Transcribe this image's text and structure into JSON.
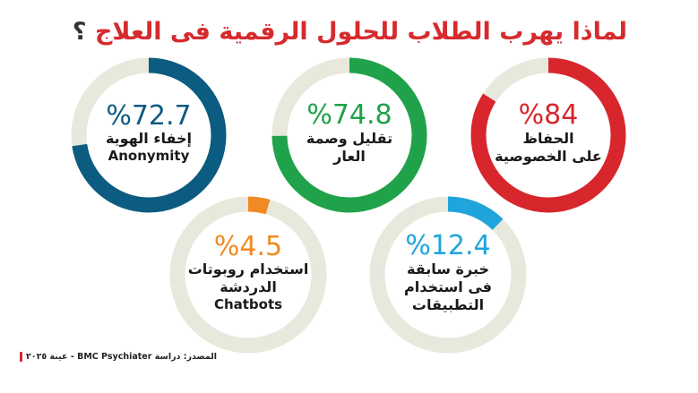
{
  "title": "لماذا يهرب الطلاب للحلول الرقمية فى العلاج",
  "title_mark": "؟",
  "source": "المصدر: دراسة BMC Psychiater - عينة ٢٠٢٥",
  "colors": {
    "track": "#e8e8dc",
    "red": "#d7262c",
    "green": "#1fa24a",
    "blue": "#0c5b80",
    "cyan": "#1fa5dc",
    "orange": "#f18a22"
  },
  "chart_data": {
    "type": "pie",
    "unit": "%",
    "items": [
      {
        "id": "privacy",
        "value": 84,
        "pct_label": "%84",
        "lines": [
          "الحفاظ",
          "على الخصوصية"
        ],
        "en": "",
        "color": "#d7262c"
      },
      {
        "id": "stigma",
        "value": 74.8,
        "pct_label": "%74.8",
        "lines": [
          "تقليل وصمة",
          "العار"
        ],
        "en": "",
        "color": "#1fa24a"
      },
      {
        "id": "anonymity",
        "value": 72.7,
        "pct_label": "%72.7",
        "lines": [
          "إخفاء الهوية"
        ],
        "en": "Anonymity",
        "color": "#0c5b80"
      },
      {
        "id": "experience",
        "value": 12.4,
        "pct_label": "%12.4",
        "lines": [
          "خبرة سابقة",
          "فى استخدام",
          "التطبيقات"
        ],
        "en": "",
        "color": "#1fa5dc"
      },
      {
        "id": "chatbots",
        "value": 4.5,
        "pct_label": "%4.5",
        "lines": [
          "استخدام روبوتات",
          "الدردشة"
        ],
        "en": "Chatbots",
        "color": "#f18a22"
      }
    ]
  }
}
